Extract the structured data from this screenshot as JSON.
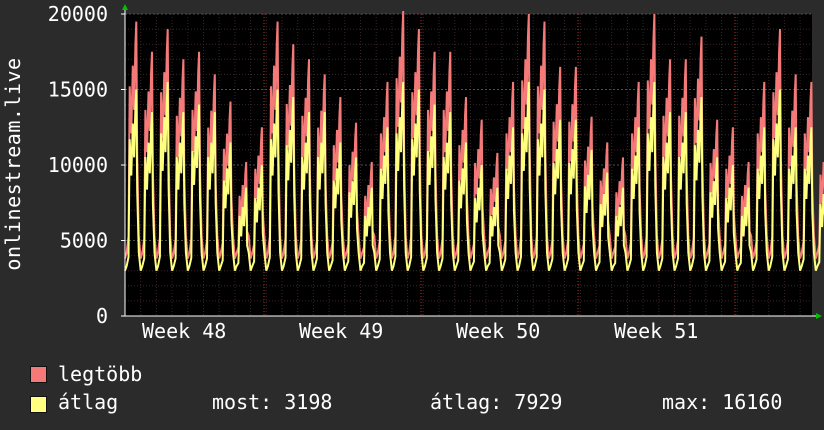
{
  "chart_data": {
    "type": "line",
    "ylabel": "onlinestream.live",
    "ylim": [
      0,
      20000
    ],
    "yticks": [
      0,
      5000,
      10000,
      15000,
      20000
    ],
    "x_labels": [
      "Week 48",
      "Week 49",
      "Week 50",
      "Week 51"
    ],
    "grid": true,
    "colors": {
      "background": "#2b2b2b",
      "plot": "#000000",
      "grid": "#505050",
      "minor_grid": "#3a2626",
      "week_marker": "#b03030",
      "axis": "#ffffff",
      "arrow": "#00c000"
    },
    "series": [
      {
        "name": "legtöbb",
        "color": "#f47a7a",
        "daily_peaks": [
          19500,
          17500,
          19000,
          17000,
          17500,
          16000,
          14200,
          10200,
          12500,
          19500,
          18000,
          17000,
          16000,
          14500,
          12800,
          10200,
          15500,
          20200,
          19000,
          17500,
          17500,
          14500,
          13000,
          10800,
          15500,
          20000,
          19500,
          16500,
          16500,
          13200,
          11500,
          10500,
          15500,
          20000,
          17000,
          17000,
          18500,
          13000,
          12500,
          10200,
          15500,
          19000,
          16000,
          15500,
          12000,
          3000
        ]
      },
      {
        "name": "átlag",
        "color": "#ffff80",
        "daily_peaks": [
          15000,
          13500,
          15500,
          13500,
          14000,
          13500,
          11500,
          8500,
          10000,
          15000,
          14500,
          13500,
          13500,
          11500,
          10500,
          8500,
          12500,
          15500,
          15000,
          14000,
          13500,
          11500,
          10000,
          8500,
          12500,
          15500,
          15000,
          13000,
          13000,
          11000,
          9500,
          8500,
          12500,
          15500,
          13500,
          13500,
          14500,
          10500,
          10000,
          8500,
          12500,
          15000,
          12500,
          12500,
          9500,
          2500
        ]
      }
    ]
  },
  "legend": {
    "items": [
      {
        "label": "legtöbb",
        "color": "#f47a7a"
      },
      {
        "label": "átlag",
        "color": "#ffff80"
      }
    ],
    "stats": {
      "now": "most: 3198",
      "avg": "átlag: 7929",
      "max": "max: 16160"
    }
  }
}
